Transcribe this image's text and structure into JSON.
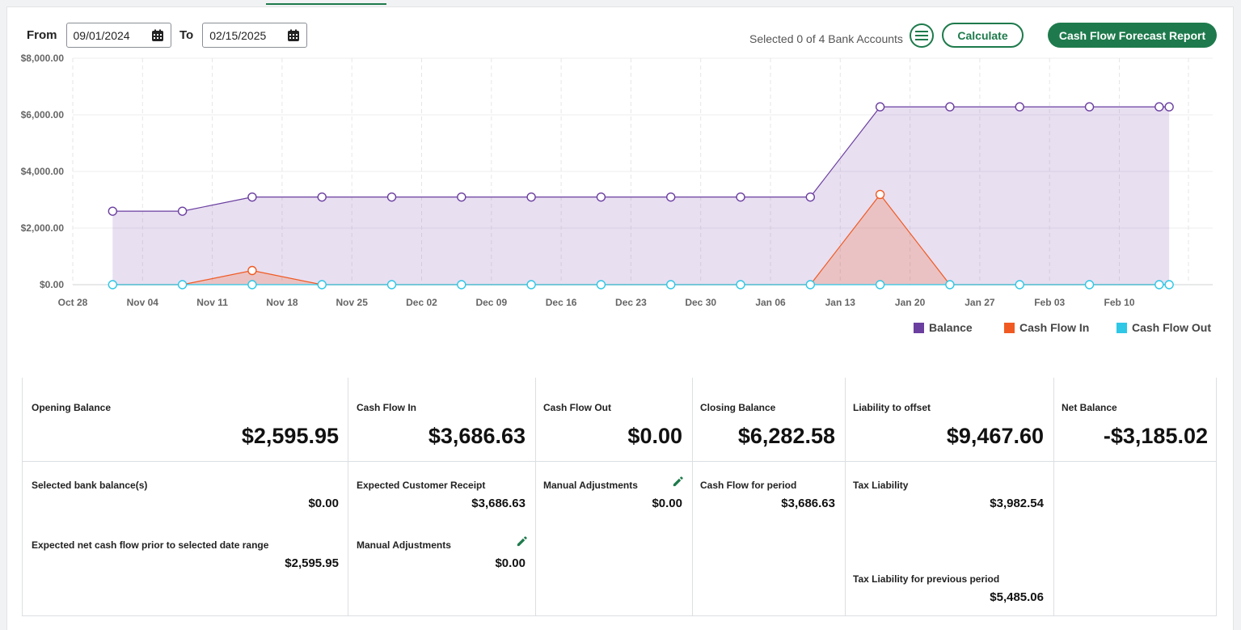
{
  "toolbar": {
    "from_label": "From",
    "from_value": "09/01/2024",
    "to_label": "To",
    "to_value": "02/15/2025",
    "selected_accounts": "Selected 0 of 4 Bank Accounts",
    "calculate_label": "Calculate",
    "report_label": "Cash Flow Forecast Report"
  },
  "colors": {
    "accent": "#1e7a4c",
    "balance": "#6b3fa0",
    "cash_in": "#f05a22",
    "cash_out": "#2ec7e6"
  },
  "chart_data": {
    "type": "line",
    "x_tick_labels": [
      "Oct 28",
      "Nov 04",
      "Nov 11",
      "Nov 18",
      "Nov 25",
      "Dec 02",
      "Dec 09",
      "Dec 16",
      "Dec 23",
      "Dec 30",
      "Jan 06",
      "Jan 13",
      "Jan 20",
      "Jan 27",
      "Feb 03",
      "Feb 10"
    ],
    "y_tick_labels": [
      "$0.00",
      "$2,000.00",
      "$4,000.00",
      "$6,000.00",
      "$8,000.00"
    ],
    "ylim": [
      0,
      8000
    ],
    "x": [
      "2024-11-01",
      "2024-11-08",
      "2024-11-15",
      "2024-11-22",
      "2024-11-29",
      "2024-12-06",
      "2024-12-13",
      "2024-12-20",
      "2024-12-27",
      "2025-01-03",
      "2025-01-10",
      "2025-01-17",
      "2025-01-24",
      "2025-01-31",
      "2025-02-07",
      "2025-02-14",
      "2025-02-15"
    ],
    "series": [
      {
        "name": "Balance",
        "values": [
          2595.95,
          2595.95,
          3095.95,
          3095.95,
          3095.95,
          3095.95,
          3095.95,
          3095.95,
          3095.95,
          3095.95,
          3095.95,
          6282.58,
          6282.58,
          6282.58,
          6282.58,
          6282.58,
          6282.58
        ]
      },
      {
        "name": "Cash Flow In",
        "values": [
          0,
          0,
          500,
          0,
          0,
          0,
          0,
          0,
          0,
          0,
          0,
          3186.63,
          0,
          0,
          0,
          0,
          0
        ]
      },
      {
        "name": "Cash Flow Out",
        "values": [
          0,
          0,
          0,
          0,
          0,
          0,
          0,
          0,
          0,
          0,
          0,
          0,
          0,
          0,
          0,
          0,
          0
        ]
      }
    ],
    "grid": true,
    "legend_position": "bottom-right"
  },
  "summary": {
    "opening_balance": {
      "label": "Opening Balance",
      "value": "$2,595.95"
    },
    "cash_flow_in": {
      "label": "Cash Flow In",
      "value": "$3,686.63"
    },
    "cash_flow_out": {
      "label": "Cash Flow Out",
      "value": "$0.00"
    },
    "closing_balance": {
      "label": "Closing Balance",
      "value": "$6,282.58"
    },
    "liability_to_offset": {
      "label": "Liability to offset",
      "value": "$9,467.60"
    },
    "net_balance": {
      "label": "Net Balance",
      "value": "-$3,185.02"
    },
    "selected_bank_balances": {
      "label": "Selected bank balance(s)",
      "value": "$0.00"
    },
    "expected_net_prior": {
      "label": "Expected net cash flow prior to selected date range",
      "value": "$2,595.95"
    },
    "expected_customer_receipt": {
      "label": "Expected Customer Receipt",
      "value": "$3,686.63"
    },
    "manual_adjustments_in": {
      "label": "Manual Adjustments",
      "value": "$0.00"
    },
    "manual_adjustments_out": {
      "label": "Manual Adjustments",
      "value": "$0.00"
    },
    "cash_flow_for_period": {
      "label": "Cash Flow for period",
      "value": "$3,686.63"
    },
    "tax_liability": {
      "label": "Tax Liability",
      "value": "$3,982.54"
    },
    "tax_liability_previous": {
      "label": "Tax Liability for previous period",
      "value": "$5,485.06"
    }
  }
}
